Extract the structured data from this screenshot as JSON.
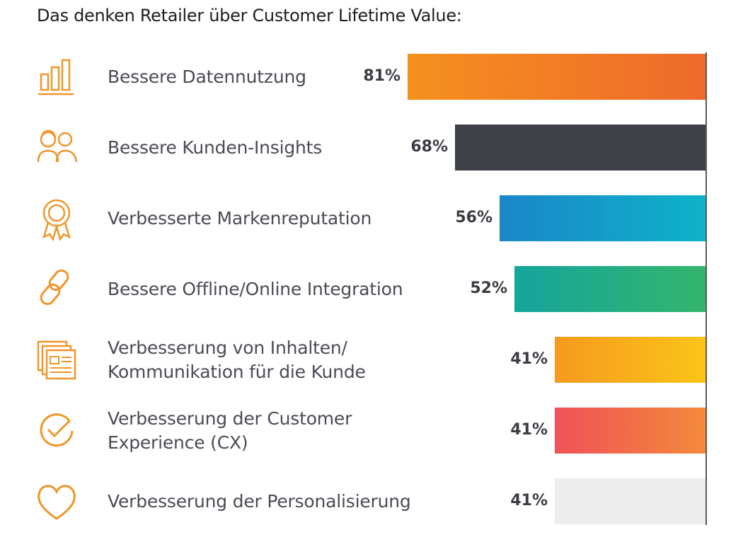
{
  "chart_data": {
    "type": "bar",
    "orientation": "horizontal",
    "title": "Das denken Retailer über Customer Lifetime Value:",
    "xlim": [
      0,
      100
    ],
    "value_suffix": "%",
    "categories": [
      "Bessere Datennutzung",
      "Bessere Kunden-Insights",
      "Verbesserte Markenreputation",
      "Bessere Offline/Online Integration",
      "Verbesserung von Inhalten/\nKommunikation für die Kunde",
      "Verbesserung der Customer\nExperience (CX)",
      "Verbesserung der Personalisierung"
    ],
    "values": [
      81,
      68,
      56,
      52,
      41,
      41,
      41
    ],
    "bars": [
      {
        "colors": [
          "#f5901e",
          "#ee6a2b"
        ]
      },
      {
        "colors": [
          "#3f4149",
          "#3f4149"
        ]
      },
      {
        "colors": [
          "#1b86c9",
          "#0db3c9"
        ]
      },
      {
        "colors": [
          "#14a59c",
          "#34b56c"
        ]
      },
      {
        "colors": [
          "#f59a1f",
          "#fbc418"
        ]
      },
      {
        "colors": [
          "#ef5158",
          "#f48a3b"
        ]
      },
      {
        "colors": [
          "#ededed",
          "#ededed"
        ]
      }
    ],
    "icons": [
      "bar-chart-icon",
      "people-icon",
      "award-ribbon-icon",
      "chain-link-icon",
      "stacked-pages-icon",
      "check-circle-icon",
      "heart-icon"
    ],
    "icon_color": "#f0962a",
    "axis_color": "#5b5b5b",
    "label_color": "#4a4b55",
    "value_color": "#3b3c44",
    "grid": false
  }
}
